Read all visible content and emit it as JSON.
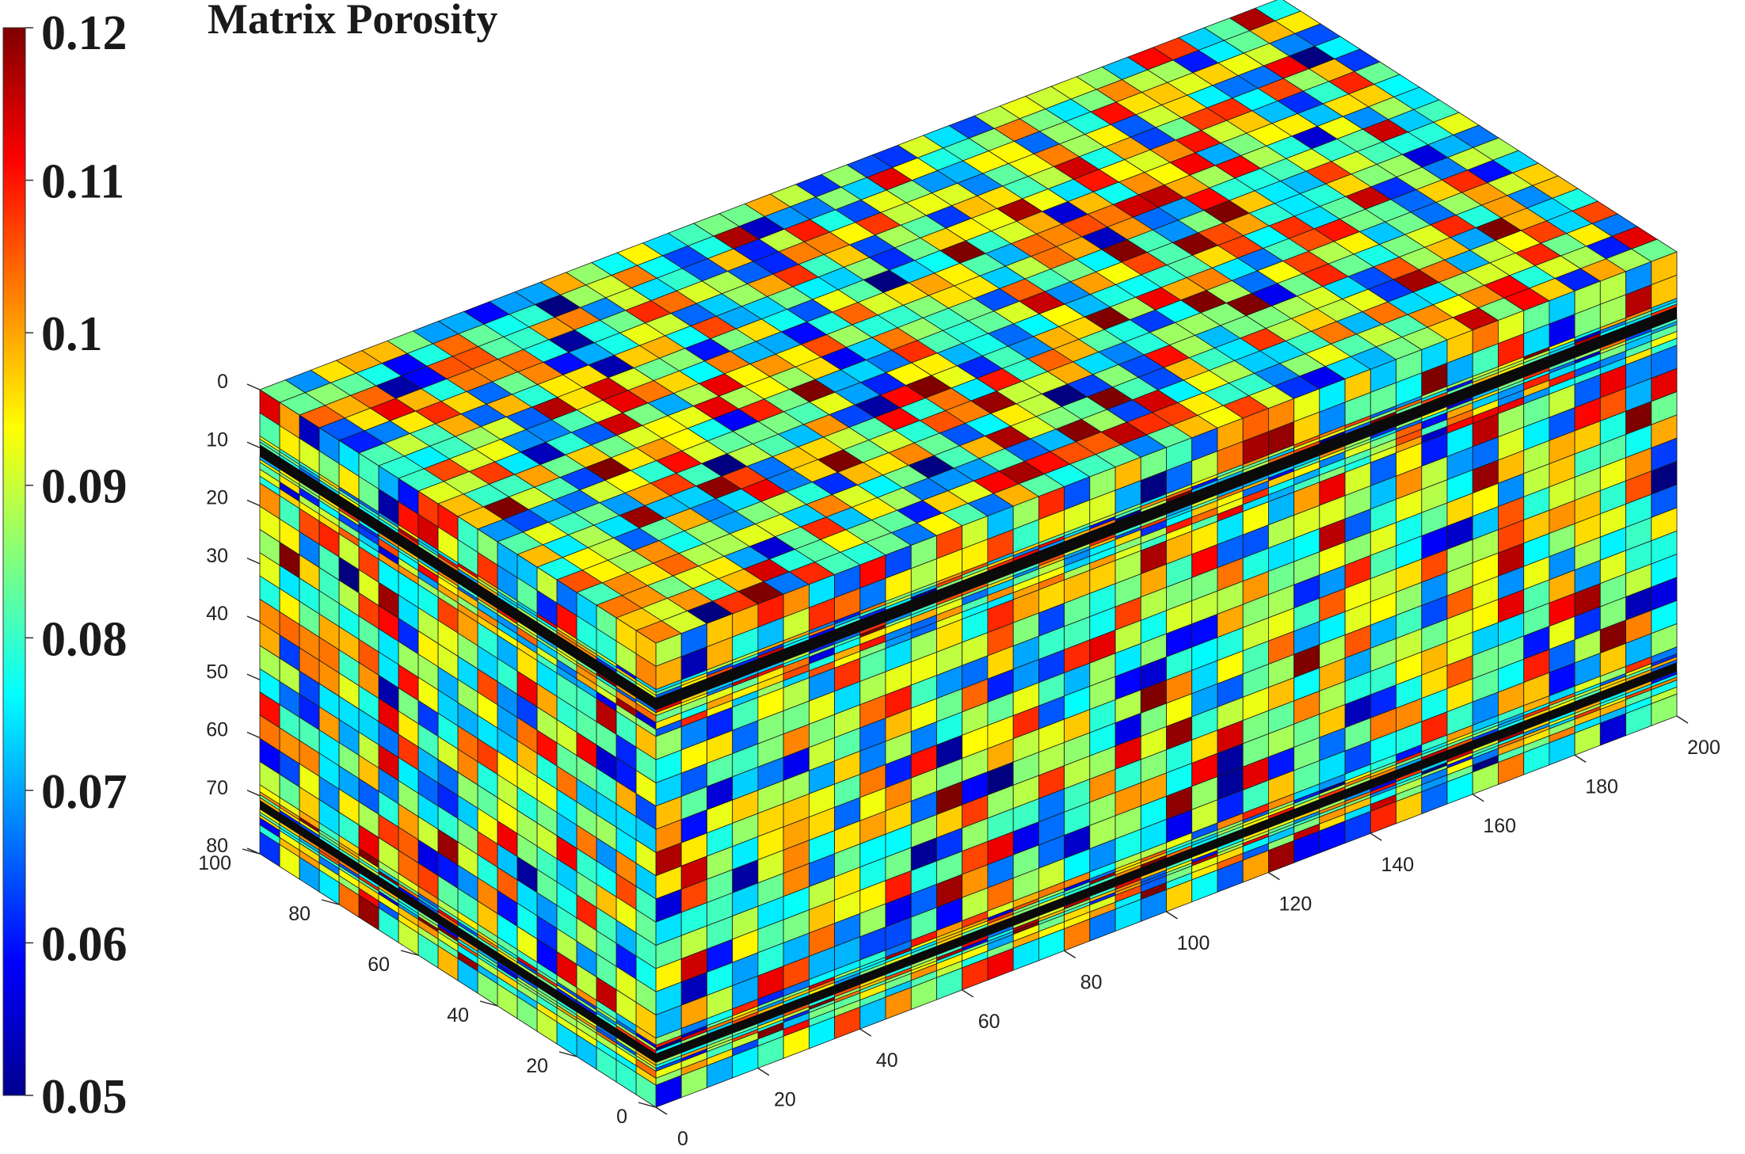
{
  "chart_data": {
    "type": "heatmap",
    "title": "Matrix Porosity",
    "colormap": "jet",
    "color_range": [
      0.05,
      0.12
    ],
    "colorbar_ticks": [
      "0.05",
      "0.06",
      "0.07",
      "0.08",
      "0.09",
      "0.1",
      "0.11",
      "0.12"
    ],
    "axes": {
      "x": {
        "range": [
          0,
          200
        ],
        "ticks": [
          "0",
          "20",
          "40",
          "60",
          "80",
          "100",
          "120",
          "140",
          "160",
          "180",
          "200"
        ]
      },
      "y": {
        "range": [
          0,
          100
        ],
        "ticks": [
          "0",
          "20",
          "40",
          "60",
          "80",
          "100"
        ]
      },
      "z": {
        "range": [
          0,
          80
        ],
        "reversed": true,
        "ticks": [
          "0",
          "10",
          "20",
          "30",
          "40",
          "50",
          "60",
          "70",
          "80"
        ]
      }
    },
    "grid_cells": {
      "nx": 40,
      "ny": 20,
      "nz": 20
    },
    "dark_bands_depth": [
      10,
      71
    ]
  }
}
